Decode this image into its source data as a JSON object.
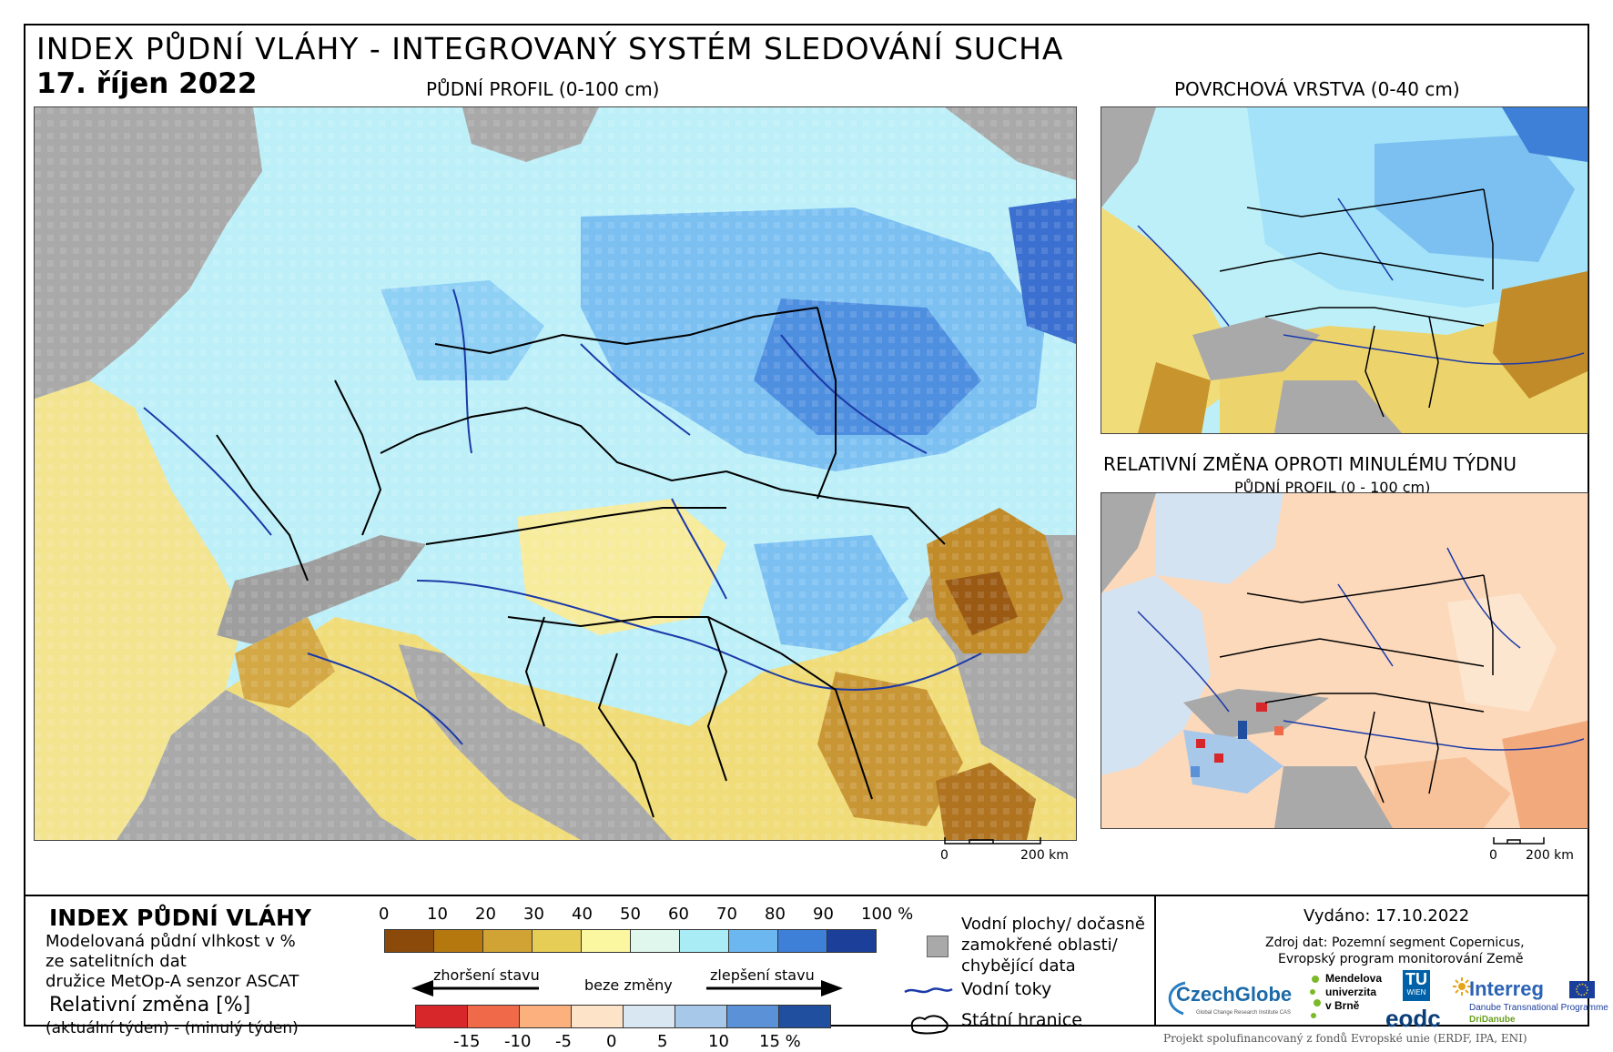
{
  "header": {
    "title": "INDEX PŮDNÍ VLÁHY - INTEGROVANÝ SYSTÉM SLEDOVÁNÍ SUCHA",
    "date": "17. říjen 2022"
  },
  "maps": {
    "main_label": "PŮDNÍ PROFIL (0-100 cm)",
    "surface_label": "POVRCHOVÁ VRSTVA (0-40 cm)",
    "change_label": "RELATIVNÍ ZMĚNA OPROTI MINULÉMU TÝDNU",
    "change_sublabel": "PŮDNÍ PROFIL (0 - 100 cm)"
  },
  "scalebar": {
    "zero": "0",
    "distance": "200 km"
  },
  "legend": {
    "title": "INDEX PŮDNÍ VLÁHY",
    "desc_line1": "Modelovaná půdní vlhkost v %",
    "desc_line2": "ze satelitních dat",
    "desc_line3": "družice MetOp-A senzor ASCAT",
    "change_title": "Relativní změna [%]",
    "change_desc": "(aktuální týden) - (minulý týden)",
    "index_ticks": [
      "0",
      "10",
      "20",
      "30",
      "40",
      "50",
      "60",
      "70",
      "80",
      "90",
      "100 %"
    ],
    "index_colors": [
      "#8c4a0a",
      "#b5780f",
      "#d0a334",
      "#e6cd55",
      "#fbf6a0",
      "#dff7ec",
      "#a9ecf6",
      "#6db7f0",
      "#3e7fd8",
      "#1c3f99"
    ],
    "arrow_left": "zhoršení stavu",
    "arrow_mid": "beze změny",
    "arrow_right": "zlepšení stavu",
    "change_ticks": [
      "-15",
      "-10",
      "-5",
      "0",
      "5",
      "10",
      "15 %"
    ],
    "change_colors": [
      "#d7272a",
      "#f06a4a",
      "#fbb07e",
      "#fde3c8",
      "#d9e7f3",
      "#a8c8ea",
      "#5b91d6",
      "#1f4f9e"
    ],
    "water_bodies": "Vodní plochy/ dočasně zamokřené oblasti/ chybějící data",
    "rivers": "Vodní toky",
    "borders": "Státní hranice"
  },
  "footer": {
    "issued": "Vydáno: 17.10.2022",
    "source_line1": "Zdroj dat: Pozemní segment Copernicus,",
    "source_line2": "Evropský program monitorování Země",
    "funding": "Projekt spolufinancovaný z fondů Evropské unie (ERDF, IPA, ENI)"
  },
  "logos": {
    "czechglobe": "CzechGlobe",
    "czechglobe_sub": "Global Change Research Institute CAS",
    "mendelu_1": "Mendelova",
    "mendelu_2": "univerzita",
    "mendelu_3": "v Brně",
    "tu": "TU",
    "tu_sub": "WIEN",
    "eodc": "eodc",
    "interreg": "Interreg",
    "interreg_sub": "Danube Transnational Programme",
    "dridanube": "DriDanube"
  }
}
